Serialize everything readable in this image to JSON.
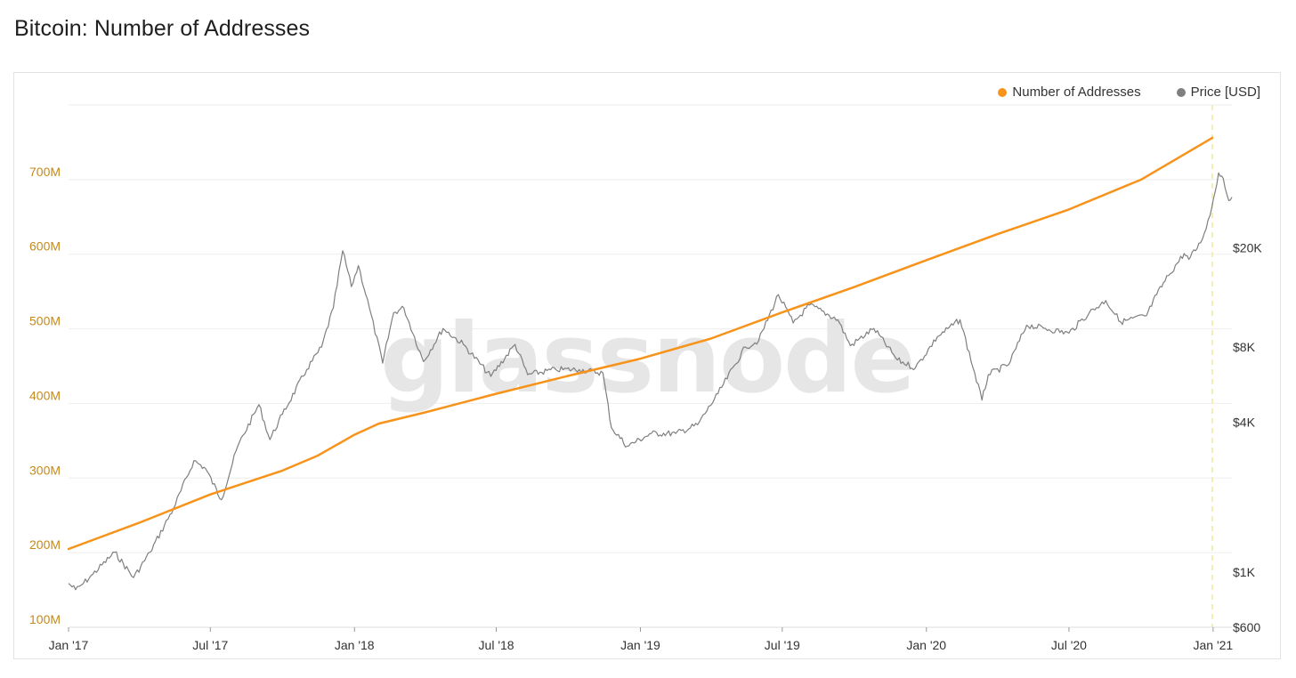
{
  "page_title": "Bitcoin: Number of Addresses",
  "watermark": "glassnode",
  "colors": {
    "addresses": "#f7931a",
    "price": "#7f7f7f",
    "left_axis": "#c28a1e",
    "grid": "#eeeeee",
    "marker": "#f3eeb8"
  },
  "legend": [
    {
      "name": "Number of Addresses",
      "color": "#f7931a"
    },
    {
      "name": "Price [USD]",
      "color": "#7f7f7f"
    }
  ],
  "chart_data": {
    "type": "line",
    "title": "Bitcoin: Number of Addresses",
    "x_ticks": [
      "Jan '17",
      "Jul '17",
      "Jan '18",
      "Jul '18",
      "Jan '19",
      "Jul '19",
      "Jan '20",
      "Jul '20",
      "Jan '21"
    ],
    "x_range": [
      "2017-01-01",
      "2021-01-25"
    ],
    "y_left": {
      "ticks": [
        "100M",
        "200M",
        "300M",
        "400M",
        "500M",
        "600M",
        "700M"
      ],
      "range": [
        100,
        800
      ],
      "unit": "M"
    },
    "y_right": {
      "ticks": [
        "$600",
        "$1K",
        "$4K",
        "$8K",
        "$20K"
      ],
      "tick_values": [
        600,
        1000,
        4000,
        8000,
        20000
      ],
      "scale": "log",
      "range": [
        600,
        75000
      ]
    },
    "grid": true,
    "legend_position": "top-right",
    "highlight_date": "2020-12-31",
    "series": [
      {
        "name": "Number of Addresses",
        "axis": "left",
        "points": [
          [
            "2017-01-01",
            205
          ],
          [
            "2017-04-01",
            240
          ],
          [
            "2017-07-01",
            278
          ],
          [
            "2017-10-01",
            310
          ],
          [
            "2017-11-15",
            330
          ],
          [
            "2018-01-01",
            358
          ],
          [
            "2018-02-01",
            373
          ],
          [
            "2018-04-01",
            388
          ],
          [
            "2018-07-01",
            413
          ],
          [
            "2018-10-01",
            437
          ],
          [
            "2019-01-01",
            460
          ],
          [
            "2019-04-01",
            487
          ],
          [
            "2019-07-01",
            522
          ],
          [
            "2019-10-01",
            556
          ],
          [
            "2020-01-01",
            592
          ],
          [
            "2020-04-01",
            627
          ],
          [
            "2020-07-01",
            660
          ],
          [
            "2020-10-01",
            700
          ],
          [
            "2020-12-31",
            756
          ]
        ]
      },
      {
        "name": "Price [USD]",
        "axis": "right",
        "points": [
          [
            "2017-01-01",
            900
          ],
          [
            "2017-01-10",
            850
          ],
          [
            "2017-01-20",
            900
          ],
          [
            "2017-02-01",
            980
          ],
          [
            "2017-03-01",
            1200
          ],
          [
            "2017-03-25",
            950
          ],
          [
            "2017-04-15",
            1200
          ],
          [
            "2017-05-15",
            1800
          ],
          [
            "2017-06-10",
            2800
          ],
          [
            "2017-06-25",
            2600
          ],
          [
            "2017-07-15",
            1950
          ],
          [
            "2017-08-05",
            3200
          ],
          [
            "2017-09-01",
            4700
          ],
          [
            "2017-09-15",
            3400
          ],
          [
            "2017-10-01",
            4300
          ],
          [
            "2017-11-01",
            6500
          ],
          [
            "2017-11-20",
            8000
          ],
          [
            "2017-12-05",
            11500
          ],
          [
            "2017-12-17",
            19500
          ],
          [
            "2017-12-28",
            14000
          ],
          [
            "2018-01-06",
            17000
          ],
          [
            "2018-01-20",
            11500
          ],
          [
            "2018-02-06",
            6900
          ],
          [
            "2018-02-20",
            11000
          ],
          [
            "2018-03-05",
            11500
          ],
          [
            "2018-03-30",
            7000
          ],
          [
            "2018-04-24",
            9500
          ],
          [
            "2018-05-20",
            8200
          ],
          [
            "2018-06-24",
            6100
          ],
          [
            "2018-07-25",
            8200
          ],
          [
            "2018-08-10",
            6200
          ],
          [
            "2018-09-15",
            6500
          ],
          [
            "2018-10-15",
            6500
          ],
          [
            "2018-11-14",
            6300
          ],
          [
            "2018-11-25",
            3800
          ],
          [
            "2018-12-15",
            3200
          ],
          [
            "2019-01-15",
            3600
          ],
          [
            "2019-02-15",
            3600
          ],
          [
            "2019-03-15",
            3900
          ],
          [
            "2019-04-10",
            5200
          ],
          [
            "2019-05-15",
            8000
          ],
          [
            "2019-06-01",
            8500
          ],
          [
            "2019-06-26",
            13000
          ],
          [
            "2019-07-15",
            10000
          ],
          [
            "2019-08-05",
            11800
          ],
          [
            "2019-09-10",
            10300
          ],
          [
            "2019-09-26",
            8100
          ],
          [
            "2019-10-26",
            9500
          ],
          [
            "2019-11-25",
            7100
          ],
          [
            "2019-12-18",
            6600
          ],
          [
            "2020-01-15",
            8800
          ],
          [
            "2020-02-13",
            10300
          ],
          [
            "2020-03-12",
            4900
          ],
          [
            "2020-03-20",
            6200
          ],
          [
            "2020-04-15",
            6800
          ],
          [
            "2020-05-08",
            9800
          ],
          [
            "2020-06-01",
            9500
          ],
          [
            "2020-07-01",
            9100
          ],
          [
            "2020-07-27",
            11000
          ],
          [
            "2020-08-17",
            12300
          ],
          [
            "2020-09-05",
            10100
          ],
          [
            "2020-10-08",
            10700
          ],
          [
            "2020-10-21",
            13000
          ],
          [
            "2020-11-05",
            15500
          ],
          [
            "2020-11-25",
            19000
          ],
          [
            "2020-12-01",
            18000
          ],
          [
            "2020-12-16",
            21000
          ],
          [
            "2020-12-28",
            27000
          ],
          [
            "2021-01-08",
            40000
          ],
          [
            "2021-01-14",
            38000
          ],
          [
            "2021-01-21",
            31000
          ],
          [
            "2021-01-25",
            32000
          ]
        ]
      }
    ]
  }
}
